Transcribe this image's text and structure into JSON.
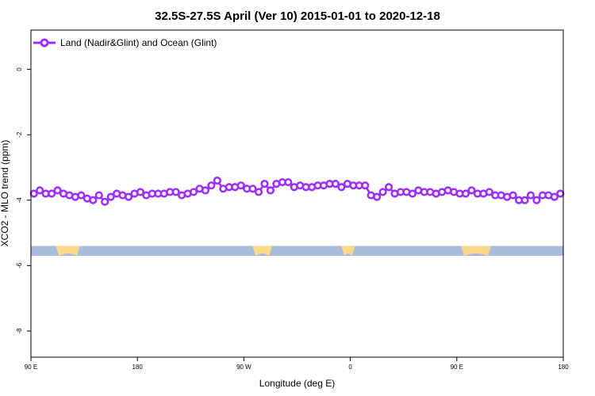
{
  "chart_data": {
    "type": "line",
    "title": "32.5S-27.5S April (Ver 10)   2015-01-01 to 2020-12-18",
    "xlabel": "Longitude (deg E)",
    "ylabel": "XCO2 - MLO trend (ppm)",
    "xlim": [
      90,
      450
    ],
    "ylim": [
      -8.8,
      1.2
    ],
    "x_ticks": [
      {
        "value": 90,
        "label": "90 E"
      },
      {
        "value": 162,
        "label": "180"
      },
      {
        "value": 234,
        "label": "90 W"
      },
      {
        "value": 306,
        "label": "0"
      },
      {
        "value": 378,
        "label": "90 E"
      },
      {
        "value": 450,
        "label": "180"
      }
    ],
    "y_ticks": [
      0,
      -2,
      -4,
      -6,
      -8
    ],
    "grid": false,
    "legend_position": "top-left",
    "series": [
      {
        "name": "Land (Nadir&Glint) and Ocean (Glint)",
        "color": "#9b30ff",
        "marker": "open-circle",
        "x": [
          92,
          96,
          100,
          104,
          108,
          112,
          116,
          120,
          124,
          128,
          132,
          136,
          140,
          144,
          148,
          152,
          156,
          160,
          164,
          168,
          172,
          176,
          180,
          184,
          188,
          192,
          196,
          200,
          204,
          208,
          212,
          216,
          220,
          224,
          228,
          232,
          236,
          240,
          244,
          248,
          252,
          256,
          260,
          264,
          268,
          272,
          276,
          280,
          284,
          288,
          292,
          296,
          300,
          304,
          308,
          312,
          316,
          320,
          324,
          328,
          332,
          336,
          340,
          344,
          348,
          352,
          356,
          360,
          364,
          368,
          372,
          376,
          380,
          384,
          388,
          392,
          396,
          400,
          404,
          408,
          412,
          416,
          420,
          424,
          428,
          432,
          436,
          440,
          444,
          448
        ],
        "y": [
          -3.8,
          -3.7,
          -3.8,
          -3.8,
          -3.7,
          -3.8,
          -3.85,
          -3.9,
          -3.85,
          -3.95,
          -4.0,
          -3.85,
          -4.05,
          -3.9,
          -3.8,
          -3.85,
          -3.9,
          -3.8,
          -3.75,
          -3.85,
          -3.8,
          -3.8,
          -3.8,
          -3.75,
          -3.75,
          -3.85,
          -3.8,
          -3.75,
          -3.65,
          -3.7,
          -3.55,
          -3.4,
          -3.65,
          -3.6,
          -3.6,
          -3.55,
          -3.65,
          -3.65,
          -3.75,
          -3.5,
          -3.7,
          -3.5,
          -3.45,
          -3.45,
          -3.6,
          -3.55,
          -3.6,
          -3.6,
          -3.55,
          -3.55,
          -3.5,
          -3.5,
          -3.6,
          -3.5,
          -3.55,
          -3.55,
          -3.55,
          -3.85,
          -3.9,
          -3.75,
          -3.6,
          -3.8,
          -3.75,
          -3.75,
          -3.8,
          -3.7,
          -3.75,
          -3.75,
          -3.8,
          -3.75,
          -3.7,
          -3.75,
          -3.8,
          -3.8,
          -3.7,
          -3.8,
          -3.8,
          -3.75,
          -3.85,
          -3.85,
          -3.9,
          -3.85,
          -4.0,
          -4.0,
          -3.85,
          -4.0,
          -3.85,
          -3.85,
          -3.9,
          -3.8
        ]
      }
    ],
    "surface_band": {
      "y_range": [
        -5.4,
        -5.7
      ],
      "ocean_color": "#a8bcdc",
      "land_color": "#ffd98a",
      "land_segments": [
        [
          109,
          121
        ],
        [
          242,
          251
        ],
        [
          302,
          307
        ],
        [
          383,
          399
        ]
      ]
    }
  }
}
